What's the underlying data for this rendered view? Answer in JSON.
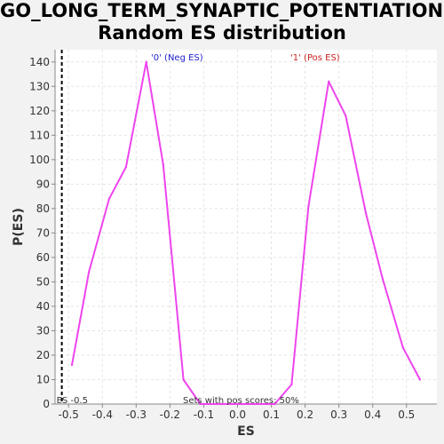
{
  "chart_data": {
    "type": "line",
    "title_line1": "GO_LONG_TERM_SYNAPTIC_POTENTIATION:",
    "title_line2": "Random ES distribution",
    "xlabel": "ES",
    "ylabel": "P(ES)",
    "xlim": [
      -0.54,
      0.59
    ],
    "ylim": [
      0,
      145
    ],
    "x_ticks": [
      -0.5,
      -0.4,
      -0.3,
      -0.2,
      -0.1,
      0.0,
      0.1,
      0.2,
      0.3,
      0.4,
      0.5
    ],
    "x_tick_labels": [
      "-0.5",
      "-0.4",
      "-0.3",
      "-0.2",
      "-0.1",
      "0.0",
      "0.1",
      "0.2",
      "0.3",
      "0.4",
      "0.5"
    ],
    "y_ticks": [
      0,
      10,
      20,
      30,
      40,
      50,
      60,
      70,
      80,
      90,
      100,
      110,
      120,
      130,
      140
    ],
    "y_tick_labels": [
      "0",
      "10",
      "20",
      "30",
      "40",
      "50",
      "60",
      "70",
      "80",
      "90",
      "100",
      "110",
      "120",
      "130",
      "140"
    ],
    "grid": true,
    "series": [
      {
        "color": "#ee44ee",
        "points": [
          [
            -0.49,
            16
          ],
          [
            -0.44,
            54
          ],
          [
            -0.38,
            84
          ],
          [
            -0.33,
            97
          ],
          [
            -0.27,
            140
          ],
          [
            -0.22,
            98
          ],
          [
            -0.16,
            10
          ],
          [
            -0.11,
            0
          ],
          [
            -0.05,
            0
          ],
          [
            0.0,
            0
          ],
          [
            0.05,
            0
          ],
          [
            0.11,
            0
          ],
          [
            0.16,
            8
          ],
          [
            0.21,
            81
          ],
          [
            0.27,
            132
          ],
          [
            0.32,
            118
          ],
          [
            0.38,
            78
          ],
          [
            0.43,
            51
          ],
          [
            0.49,
            23
          ],
          [
            0.54,
            10
          ]
        ]
      }
    ],
    "annotations": {
      "neg_label": "'0' (Neg ES)",
      "neg_color": "#2222cc",
      "pos_label": "'1' (Pos ES)",
      "pos_color": "#cc2222",
      "cutoff_x": -0.52,
      "cutoff_label": "ES -0.5",
      "pos_scores_label": "Sets with pos scores: 50%"
    }
  }
}
